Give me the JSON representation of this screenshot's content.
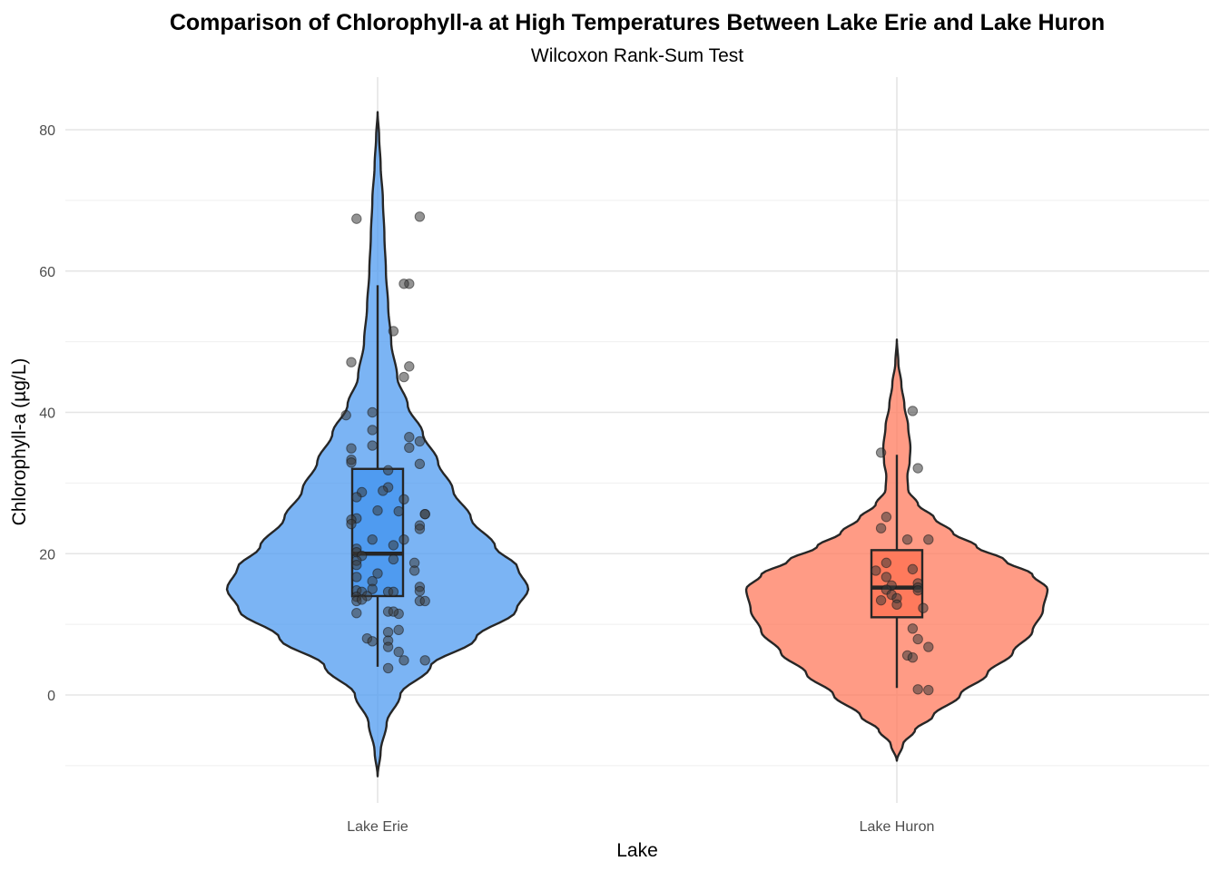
{
  "chart_data": {
    "type": "violin",
    "title": "Comparison of Chlorophyll-a at High Temperatures Between Lake Erie and Lake Huron",
    "subtitle": "Wilcoxon Rank-Sum Test",
    "xlabel": "Lake",
    "ylabel": "Chlorophyll-a (µg/L)",
    "ylim": [
      -13,
      88
    ],
    "yticks": [
      0,
      20,
      40,
      60,
      80
    ],
    "ytick_labels": [
      "0",
      "20",
      "40",
      "60",
      "80"
    ],
    "grid": true,
    "categories": [
      "Lake Erie",
      "Lake Huron"
    ],
    "colors": {
      "Lake Erie": "#4f9bf0",
      "Lake Huron": "#ff7a5c",
      "outline": "#262626"
    },
    "series": [
      {
        "category": "Lake Erie",
        "violin_extent": [
          -11.5,
          82.5
        ],
        "density_profile": [
          [
            -11.5,
            0.0
          ],
          [
            -8,
            0.02
          ],
          [
            -4,
            0.06
          ],
          [
            0,
            0.15
          ],
          [
            4,
            0.35
          ],
          [
            8,
            0.65
          ],
          [
            12,
            0.92
          ],
          [
            15,
            1.0
          ],
          [
            18,
            0.93
          ],
          [
            21,
            0.78
          ],
          [
            25,
            0.62
          ],
          [
            29,
            0.5
          ],
          [
            33,
            0.4
          ],
          [
            37,
            0.3
          ],
          [
            41,
            0.2
          ],
          [
            45,
            0.13
          ],
          [
            50,
            0.09
          ],
          [
            55,
            0.07
          ],
          [
            60,
            0.055
          ],
          [
            65,
            0.045
          ],
          [
            70,
            0.035
          ],
          [
            75,
            0.02
          ],
          [
            79,
            0.01
          ],
          [
            82.5,
            0.0
          ]
        ],
        "box": {
          "min": 4,
          "q1": 14,
          "median": 20,
          "q3": 32,
          "max": 58
        },
        "points": [
          [
            0.8,
            67.7
          ],
          [
            -0.4,
            67.4
          ],
          [
            0.6,
            58.2
          ],
          [
            0.5,
            58.2
          ],
          [
            0.3,
            51.5
          ],
          [
            0.6,
            46.5
          ],
          [
            -0.5,
            47.1
          ],
          [
            0.5,
            45.0
          ],
          [
            -0.1,
            40.0
          ],
          [
            -0.6,
            39.6
          ],
          [
            -0.1,
            37.5
          ],
          [
            0.6,
            36.5
          ],
          [
            -0.1,
            35.3
          ],
          [
            0.8,
            35.9
          ],
          [
            0.6,
            35.0
          ],
          [
            -0.5,
            34.9
          ],
          [
            -0.5,
            33.3
          ],
          [
            -0.5,
            32.9
          ],
          [
            0.8,
            32.7
          ],
          [
            0.2,
            31.8
          ],
          [
            0.2,
            29.4
          ],
          [
            0.1,
            28.9
          ],
          [
            -0.3,
            28.7
          ],
          [
            -0.4,
            28.0
          ],
          [
            0.5,
            27.7
          ],
          [
            0.4,
            26.0
          ],
          [
            0.0,
            26.1
          ],
          [
            0.9,
            25.6
          ],
          [
            0.9,
            25.6
          ],
          [
            -0.4,
            25.0
          ],
          [
            -0.5,
            24.8
          ],
          [
            -0.5,
            24.2
          ],
          [
            0.8,
            24.0
          ],
          [
            0.8,
            23.5
          ],
          [
            0.5,
            22.0
          ],
          [
            -0.1,
            22.0
          ],
          [
            0.3,
            21.2
          ],
          [
            -0.4,
            20.7
          ],
          [
            -0.4,
            20.2
          ],
          [
            -0.3,
            19.7
          ],
          [
            0.3,
            19.2
          ],
          [
            -0.4,
            19.0
          ],
          [
            0.7,
            18.7
          ],
          [
            -0.4,
            18.4
          ],
          [
            0.7,
            17.6
          ],
          [
            0.0,
            17.2
          ],
          [
            -0.4,
            16.7
          ],
          [
            -0.1,
            16.1
          ],
          [
            0.8,
            15.3
          ],
          [
            -0.1,
            15.0
          ],
          [
            0.8,
            14.7
          ],
          [
            -0.4,
            14.8
          ],
          [
            0.2,
            14.6
          ],
          [
            -0.3,
            14.6
          ],
          [
            0.3,
            14.6
          ],
          [
            -0.2,
            14.0
          ],
          [
            -0.4,
            13.9
          ],
          [
            0.8,
            13.3
          ],
          [
            -0.4,
            13.3
          ],
          [
            0.9,
            13.3
          ],
          [
            -0.3,
            13.5
          ],
          [
            0.4,
            11.5
          ],
          [
            0.2,
            11.8
          ],
          [
            0.3,
            11.8
          ],
          [
            -0.4,
            11.6
          ],
          [
            0.4,
            9.2
          ],
          [
            0.2,
            8.9
          ],
          [
            -0.2,
            8.0
          ],
          [
            0.2,
            7.7
          ],
          [
            -0.1,
            7.6
          ],
          [
            0.2,
            6.8
          ],
          [
            0.4,
            6.1
          ],
          [
            0.9,
            4.9
          ],
          [
            0.5,
            4.9
          ],
          [
            0.2,
            3.8
          ]
        ]
      },
      {
        "category": "Lake Huron",
        "violin_extent": [
          -9.3,
          50.3
        ],
        "density_profile": [
          [
            -9.3,
            0.0
          ],
          [
            -7,
            0.04
          ],
          [
            -5,
            0.12
          ],
          [
            -3,
            0.24
          ],
          [
            0,
            0.42
          ],
          [
            3,
            0.6
          ],
          [
            6,
            0.77
          ],
          [
            9,
            0.9
          ],
          [
            12,
            0.97
          ],
          [
            15,
            1.0
          ],
          [
            17,
            0.9
          ],
          [
            19,
            0.72
          ],
          [
            21,
            0.53
          ],
          [
            23,
            0.37
          ],
          [
            25,
            0.25
          ],
          [
            27,
            0.14
          ],
          [
            29,
            0.075
          ],
          [
            31,
            0.07
          ],
          [
            33,
            0.085
          ],
          [
            35,
            0.09
          ],
          [
            38,
            0.075
          ],
          [
            41,
            0.05
          ],
          [
            44,
            0.03
          ],
          [
            47,
            0.01
          ],
          [
            50.3,
            0.0
          ]
        ],
        "box": {
          "min": 1,
          "q1": 11,
          "median": 15.2,
          "q3": 20.5,
          "max": 34
        },
        "points": [
          [
            0.3,
            40.2
          ],
          [
            -0.3,
            34.3
          ],
          [
            0.4,
            32.1
          ],
          [
            -0.2,
            25.2
          ],
          [
            -0.3,
            23.6
          ],
          [
            0.6,
            22.0
          ],
          [
            0.2,
            22.0
          ],
          [
            -0.2,
            18.7
          ],
          [
            0.3,
            17.8
          ],
          [
            -0.4,
            17.6
          ],
          [
            -0.2,
            16.7
          ],
          [
            0.4,
            15.8
          ],
          [
            -0.1,
            15.5
          ],
          [
            0.4,
            15.2
          ],
          [
            -0.2,
            14.9
          ],
          [
            0.4,
            14.8
          ],
          [
            -0.1,
            14.2
          ],
          [
            0.0,
            13.7
          ],
          [
            -0.3,
            13.4
          ],
          [
            0.0,
            12.8
          ],
          [
            0.5,
            12.3
          ],
          [
            0.3,
            9.4
          ],
          [
            0.4,
            7.9
          ],
          [
            0.6,
            6.8
          ],
          [
            0.2,
            5.6
          ],
          [
            0.3,
            5.3
          ],
          [
            0.4,
            0.8
          ],
          [
            0.6,
            0.7
          ]
        ]
      }
    ]
  }
}
